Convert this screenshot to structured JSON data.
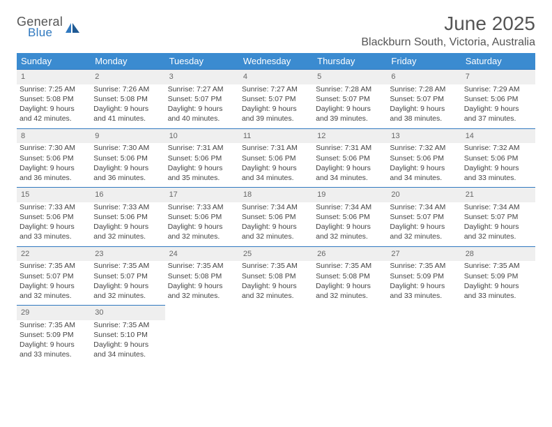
{
  "logo": {
    "word1": "General",
    "word2": "Blue"
  },
  "title": "June 2025",
  "subtitle": "Blackburn South, Victoria, Australia",
  "theme": {
    "header_bg": "#3b8bd0",
    "accent": "#2f78bf",
    "daynum_bg": "#efefef",
    "text": "#444444"
  },
  "weekdays": [
    "Sunday",
    "Monday",
    "Tuesday",
    "Wednesday",
    "Thursday",
    "Friday",
    "Saturday"
  ],
  "weeks": [
    [
      {
        "n": "1",
        "sr": "7:25 AM",
        "ss": "5:08 PM",
        "dl": "9 hours and 42 minutes."
      },
      {
        "n": "2",
        "sr": "7:26 AM",
        "ss": "5:08 PM",
        "dl": "9 hours and 41 minutes."
      },
      {
        "n": "3",
        "sr": "7:27 AM",
        "ss": "5:07 PM",
        "dl": "9 hours and 40 minutes."
      },
      {
        "n": "4",
        "sr": "7:27 AM",
        "ss": "5:07 PM",
        "dl": "9 hours and 39 minutes."
      },
      {
        "n": "5",
        "sr": "7:28 AM",
        "ss": "5:07 PM",
        "dl": "9 hours and 39 minutes."
      },
      {
        "n": "6",
        "sr": "7:28 AM",
        "ss": "5:07 PM",
        "dl": "9 hours and 38 minutes."
      },
      {
        "n": "7",
        "sr": "7:29 AM",
        "ss": "5:06 PM",
        "dl": "9 hours and 37 minutes."
      }
    ],
    [
      {
        "n": "8",
        "sr": "7:30 AM",
        "ss": "5:06 PM",
        "dl": "9 hours and 36 minutes."
      },
      {
        "n": "9",
        "sr": "7:30 AM",
        "ss": "5:06 PM",
        "dl": "9 hours and 36 minutes."
      },
      {
        "n": "10",
        "sr": "7:31 AM",
        "ss": "5:06 PM",
        "dl": "9 hours and 35 minutes."
      },
      {
        "n": "11",
        "sr": "7:31 AM",
        "ss": "5:06 PM",
        "dl": "9 hours and 34 minutes."
      },
      {
        "n": "12",
        "sr": "7:31 AM",
        "ss": "5:06 PM",
        "dl": "9 hours and 34 minutes."
      },
      {
        "n": "13",
        "sr": "7:32 AM",
        "ss": "5:06 PM",
        "dl": "9 hours and 34 minutes."
      },
      {
        "n": "14",
        "sr": "7:32 AM",
        "ss": "5:06 PM",
        "dl": "9 hours and 33 minutes."
      }
    ],
    [
      {
        "n": "15",
        "sr": "7:33 AM",
        "ss": "5:06 PM",
        "dl": "9 hours and 33 minutes."
      },
      {
        "n": "16",
        "sr": "7:33 AM",
        "ss": "5:06 PM",
        "dl": "9 hours and 32 minutes."
      },
      {
        "n": "17",
        "sr": "7:33 AM",
        "ss": "5:06 PM",
        "dl": "9 hours and 32 minutes."
      },
      {
        "n": "18",
        "sr": "7:34 AM",
        "ss": "5:06 PM",
        "dl": "9 hours and 32 minutes."
      },
      {
        "n": "19",
        "sr": "7:34 AM",
        "ss": "5:06 PM",
        "dl": "9 hours and 32 minutes."
      },
      {
        "n": "20",
        "sr": "7:34 AM",
        "ss": "5:07 PM",
        "dl": "9 hours and 32 minutes."
      },
      {
        "n": "21",
        "sr": "7:34 AM",
        "ss": "5:07 PM",
        "dl": "9 hours and 32 minutes."
      }
    ],
    [
      {
        "n": "22",
        "sr": "7:35 AM",
        "ss": "5:07 PM",
        "dl": "9 hours and 32 minutes."
      },
      {
        "n": "23",
        "sr": "7:35 AM",
        "ss": "5:07 PM",
        "dl": "9 hours and 32 minutes."
      },
      {
        "n": "24",
        "sr": "7:35 AM",
        "ss": "5:08 PM",
        "dl": "9 hours and 32 minutes."
      },
      {
        "n": "25",
        "sr": "7:35 AM",
        "ss": "5:08 PM",
        "dl": "9 hours and 32 minutes."
      },
      {
        "n": "26",
        "sr": "7:35 AM",
        "ss": "5:08 PM",
        "dl": "9 hours and 32 minutes."
      },
      {
        "n": "27",
        "sr": "7:35 AM",
        "ss": "5:09 PM",
        "dl": "9 hours and 33 minutes."
      },
      {
        "n": "28",
        "sr": "7:35 AM",
        "ss": "5:09 PM",
        "dl": "9 hours and 33 minutes."
      }
    ],
    [
      {
        "n": "29",
        "sr": "7:35 AM",
        "ss": "5:09 PM",
        "dl": "9 hours and 33 minutes."
      },
      {
        "n": "30",
        "sr": "7:35 AM",
        "ss": "5:10 PM",
        "dl": "9 hours and 34 minutes."
      },
      null,
      null,
      null,
      null,
      null
    ]
  ],
  "labels": {
    "sunrise": "Sunrise:",
    "sunset": "Sunset:",
    "daylight": "Daylight:"
  }
}
